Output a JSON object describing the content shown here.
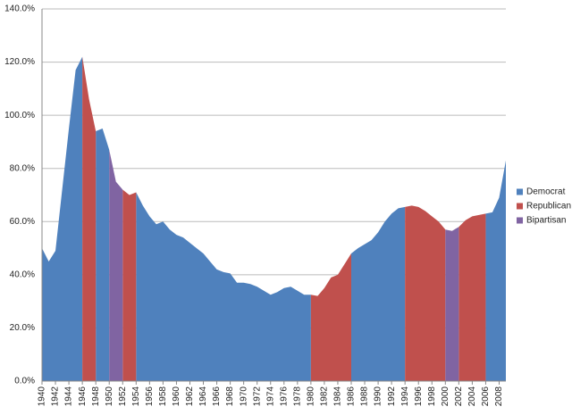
{
  "chart_data": {
    "type": "area",
    "x": [
      1940,
      1941,
      1942,
      1943,
      1944,
      1945,
      1946,
      1947,
      1948,
      1949,
      1950,
      1951,
      1952,
      1953,
      1954,
      1955,
      1956,
      1957,
      1958,
      1959,
      1960,
      1961,
      1962,
      1963,
      1964,
      1965,
      1966,
      1967,
      1968,
      1969,
      1970,
      1971,
      1972,
      1973,
      1974,
      1975,
      1976,
      1977,
      1978,
      1979,
      1980,
      1981,
      1982,
      1983,
      1984,
      1985,
      1986,
      1987,
      1988,
      1989,
      1990,
      1991,
      1992,
      1993,
      1994,
      1995,
      1996,
      1997,
      1998,
      1999,
      2000,
      2001,
      2002,
      2003,
      2004,
      2005,
      2006,
      2007,
      2008,
      2009
    ],
    "series": [
      {
        "name": "Democrat",
        "color": "#4f81bd",
        "values": [
          50,
          45,
          49,
          72,
          95,
          117,
          122,
          null,
          94,
          95,
          87,
          null,
          null,
          null,
          71,
          66,
          62,
          59,
          60,
          57,
          55,
          54,
          52,
          50,
          48,
          45,
          42,
          41,
          40.5,
          37,
          37,
          36.5,
          35.5,
          34,
          32.5,
          33.5,
          35,
          35.5,
          34,
          32.5,
          32.5,
          null,
          null,
          null,
          null,
          null,
          48,
          50,
          51.5,
          53,
          56,
          60,
          63,
          65,
          65.5,
          null,
          null,
          null,
          null,
          null,
          null,
          null,
          null,
          null,
          null,
          null,
          63,
          63.5,
          69,
          83
        ]
      },
      {
        "name": "Republican",
        "color": "#c0504d",
        "values": [
          null,
          null,
          null,
          null,
          null,
          null,
          122,
          106,
          94,
          null,
          null,
          null,
          72,
          70,
          71,
          null,
          null,
          null,
          null,
          null,
          null,
          null,
          null,
          null,
          null,
          null,
          null,
          null,
          null,
          null,
          null,
          null,
          null,
          null,
          null,
          null,
          null,
          null,
          null,
          null,
          32.5,
          32,
          35,
          39,
          40,
          44,
          48,
          null,
          null,
          null,
          null,
          null,
          null,
          null,
          65.5,
          66,
          65.5,
          64,
          62,
          60,
          57,
          null,
          58,
          60.5,
          62,
          62.5,
          63,
          null,
          null,
          null
        ]
      },
      {
        "name": "Bipartisan",
        "color": "#8064a2",
        "values": [
          null,
          null,
          null,
          null,
          null,
          null,
          null,
          null,
          null,
          null,
          87,
          75,
          72,
          null,
          null,
          null,
          null,
          null,
          null,
          null,
          null,
          null,
          null,
          null,
          null,
          null,
          null,
          null,
          null,
          null,
          null,
          null,
          null,
          null,
          null,
          null,
          null,
          null,
          null,
          null,
          null,
          null,
          null,
          null,
          null,
          null,
          null,
          null,
          null,
          null,
          null,
          null,
          null,
          null,
          null,
          null,
          null,
          null,
          null,
          null,
          57,
          56.5,
          58,
          null,
          null,
          null,
          null,
          null,
          null,
          null
        ]
      }
    ],
    "xlim": [
      1940,
      2009
    ],
    "xticks": [
      1940,
      1942,
      1944,
      1946,
      1948,
      1950,
      1952,
      1954,
      1956,
      1958,
      1960,
      1962,
      1964,
      1966,
      1968,
      1970,
      1972,
      1974,
      1976,
      1978,
      1980,
      1982,
      1984,
      1986,
      1988,
      1990,
      1992,
      1994,
      1996,
      1998,
      2000,
      2002,
      2004,
      2006,
      2008
    ],
    "ylim": [
      0,
      140
    ],
    "yticks": [
      {
        "value": 0,
        "label": "0.0%"
      },
      {
        "value": 20,
        "label": "20.0%"
      },
      {
        "value": 40,
        "label": "40.0%"
      },
      {
        "value": 60,
        "label": "60.0%"
      },
      {
        "value": 80,
        "label": "80.0%"
      },
      {
        "value": 100,
        "label": "100.0%"
      },
      {
        "value": 120,
        "label": "120.0%"
      },
      {
        "value": 140,
        "label": "140.0%"
      }
    ],
    "grid": true,
    "legend": "right"
  }
}
